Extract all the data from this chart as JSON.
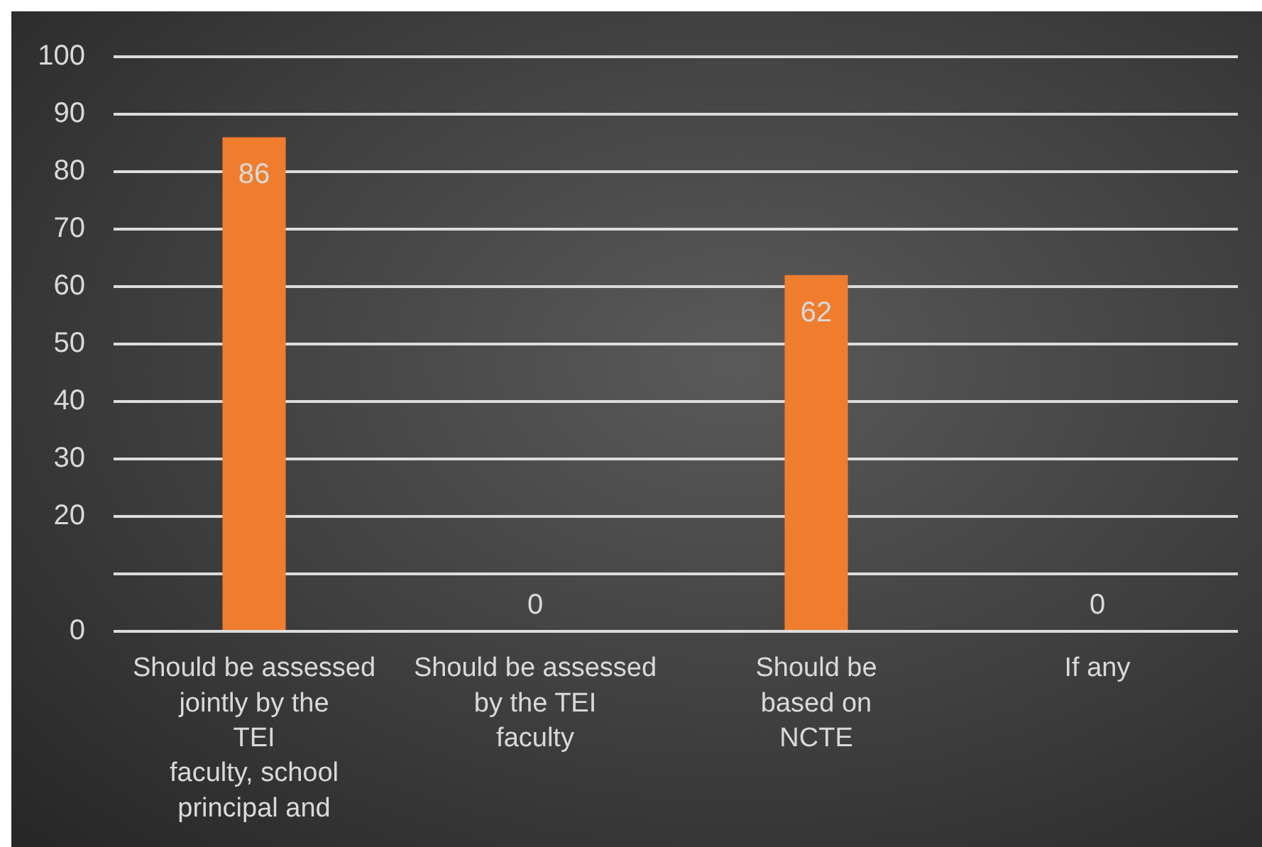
{
  "chart_data": {
    "type": "bar",
    "categories": [
      "Should be assessed\njointly by the\nTEI\nfaculty, school\nprincipal and",
      "Should be assessed\nby the TEI\nfaculty",
      "Should be\nbased on\nNCTE",
      "If any"
    ],
    "values": [
      86,
      0,
      62,
      0
    ],
    "color": "#f07d2e",
    "ylim": [
      0,
      100
    ],
    "yticks": [
      0,
      {
        "value": 10,
        "label": null
      },
      20,
      30,
      40,
      50,
      60,
      70,
      80,
      90,
      100
    ],
    "grid": "y",
    "legend": false,
    "data_labels": true
  }
}
